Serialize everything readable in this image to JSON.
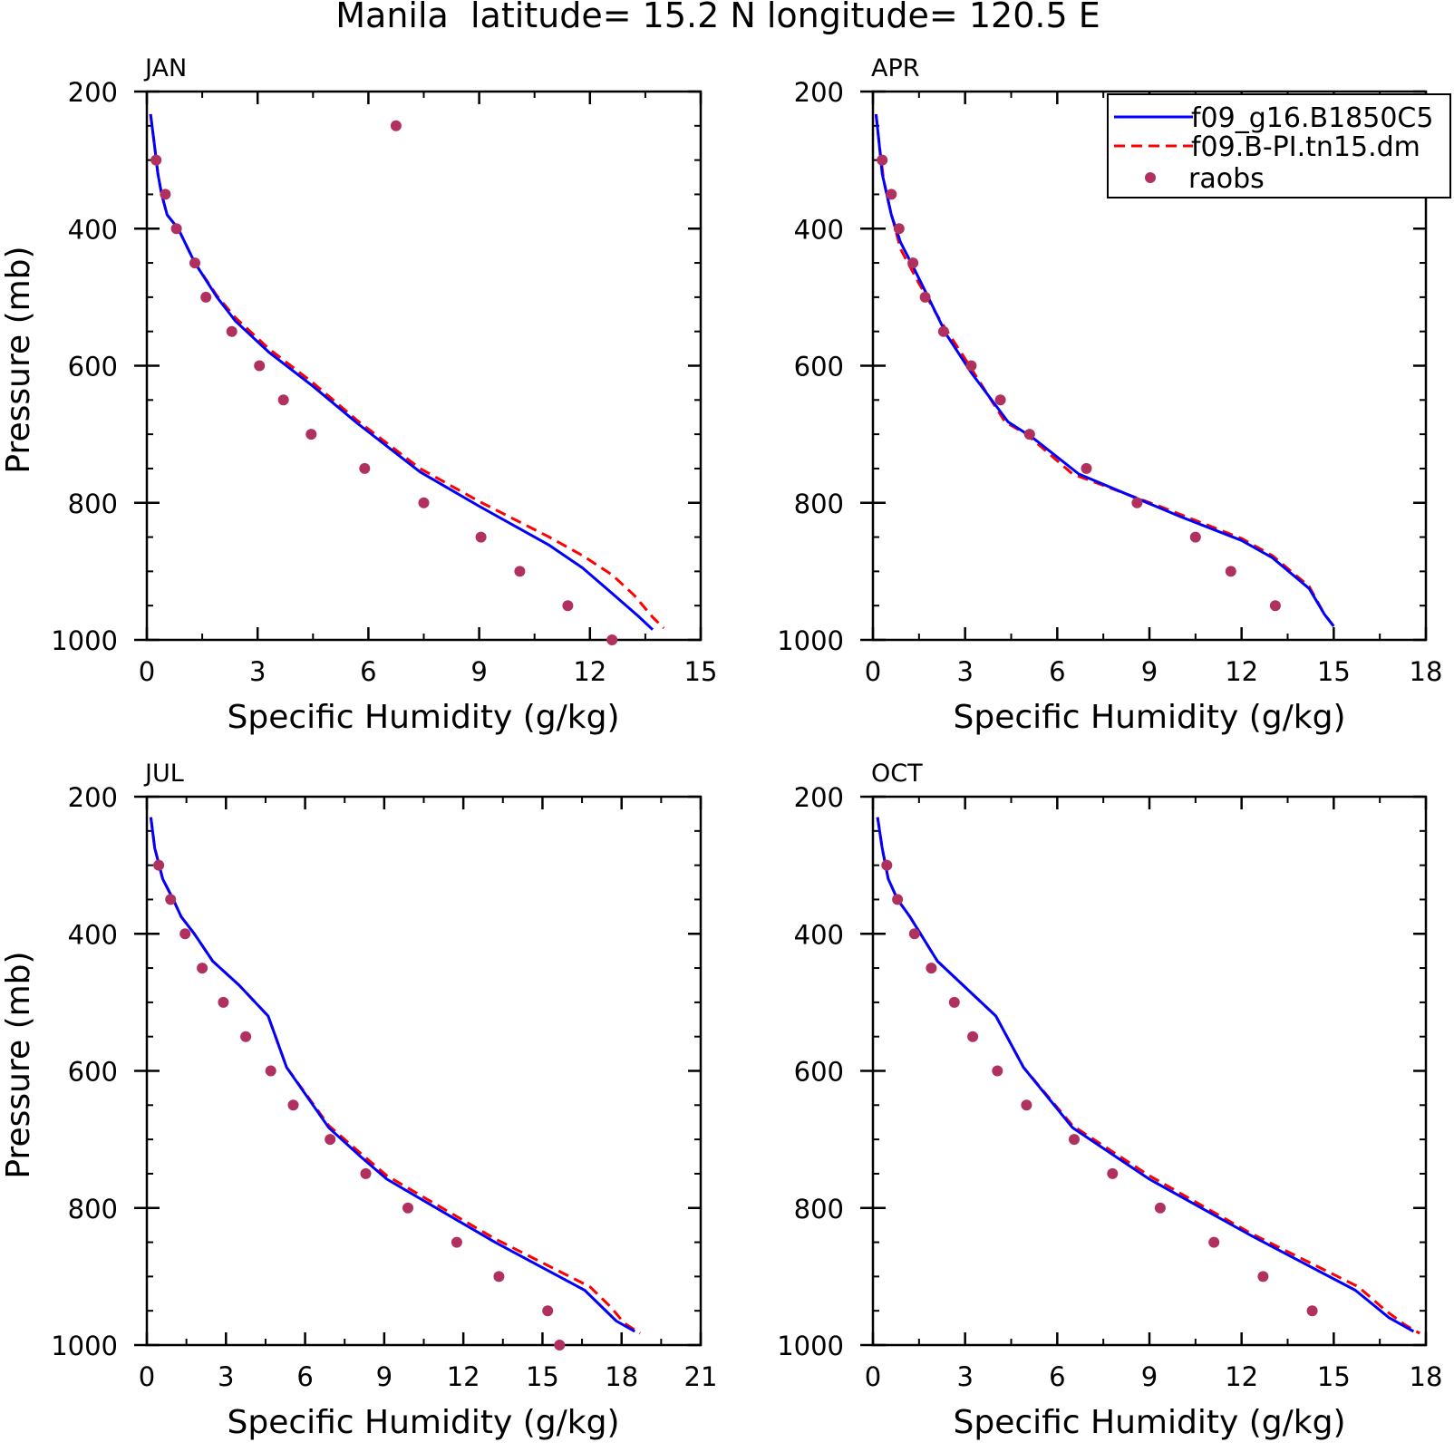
{
  "figure": {
    "title": "Manila  latitude= 15.2 N longitude= 120.5 E"
  },
  "legend": {
    "entries": [
      {
        "label": "f09_g16.B1850C5",
        "style": "solid",
        "color": "#0000ff"
      },
      {
        "label": "f09.B-PI.tn15.dm",
        "style": "dashed",
        "color": "#ff0000"
      },
      {
        "label": "raobs",
        "style": "marker",
        "color": "#b03060"
      }
    ]
  },
  "colors": {
    "model1": "#0000ff",
    "model2": "#ff0000",
    "obs": "#b03060"
  },
  "chart_data": [
    {
      "type": "line",
      "panel_label": "JAN",
      "xlabel": "Specific Humidity (g/kg)",
      "ylabel": "Pressure (mb)",
      "xlim": [
        0,
        15
      ],
      "ylim": [
        200,
        1000
      ],
      "y_inverted": true,
      "xticks": [
        0,
        3,
        6,
        9,
        12,
        15
      ],
      "yticks": [
        200,
        400,
        600,
        800,
        1000
      ],
      "legend": false,
      "series": [
        {
          "style": "solid",
          "points": [
            [
              0.1,
              233
            ],
            [
              0.2,
              275
            ],
            [
              0.3,
              320
            ],
            [
              0.4,
              350
            ],
            [
              0.55,
              380
            ],
            [
              0.85,
              400
            ],
            [
              1.3,
              450
            ],
            [
              1.9,
              500
            ],
            [
              2.4,
              535
            ],
            [
              3.3,
              580
            ],
            [
              4.5,
              630
            ],
            [
              5.7,
              684
            ],
            [
              7.4,
              755
            ],
            [
              9.0,
              805
            ],
            [
              10.9,
              862
            ],
            [
              11.8,
              895
            ],
            [
              12.6,
              932
            ],
            [
              13.3,
              965
            ],
            [
              13.7,
              985
            ]
          ]
        },
        {
          "style": "dashed",
          "points": [
            [
              0.1,
              233
            ],
            [
              0.2,
              275
            ],
            [
              0.3,
              320
            ],
            [
              0.4,
              350
            ],
            [
              0.55,
              380
            ],
            [
              0.85,
              400
            ],
            [
              1.3,
              450
            ],
            [
              1.9,
              498
            ],
            [
              2.4,
              530
            ],
            [
              3.3,
              575
            ],
            [
              4.5,
              625
            ],
            [
              5.7,
              680
            ],
            [
              7.4,
              750
            ],
            [
              9.0,
              798
            ],
            [
              10.9,
              850
            ],
            [
              11.8,
              877
            ],
            [
              12.6,
              905
            ],
            [
              13.2,
              935
            ],
            [
              13.7,
              967
            ],
            [
              14.0,
              983
            ]
          ]
        }
      ],
      "observations": [
        [
          0.25,
          300
        ],
        [
          0.5,
          350
        ],
        [
          0.8,
          400
        ],
        [
          1.3,
          450
        ],
        [
          1.6,
          500
        ],
        [
          2.3,
          550
        ],
        [
          3.05,
          600
        ],
        [
          3.7,
          650
        ],
        [
          4.45,
          700
        ],
        [
          5.9,
          750
        ],
        [
          7.5,
          800
        ],
        [
          9.05,
          850
        ],
        [
          10.1,
          900
        ],
        [
          11.4,
          950
        ],
        [
          12.6,
          1000
        ],
        [
          6.75,
          250
        ]
      ]
    },
    {
      "type": "line",
      "panel_label": "APR",
      "xlabel": "Specific Humidity (g/kg)",
      "ylabel": "",
      "xlim": [
        0,
        18
      ],
      "ylim": [
        200,
        1000
      ],
      "y_inverted": true,
      "xticks": [
        0,
        3,
        6,
        9,
        12,
        15,
        18
      ],
      "yticks": [
        200,
        400,
        600,
        800,
        1000
      ],
      "legend": true,
      "series": [
        {
          "style": "solid",
          "points": [
            [
              0.1,
              233
            ],
            [
              0.2,
              275
            ],
            [
              0.3,
              320
            ],
            [
              0.45,
              350
            ],
            [
              0.6,
              380
            ],
            [
              0.9,
              420
            ],
            [
              1.3,
              455
            ],
            [
              1.8,
              500
            ],
            [
              2.4,
              555
            ],
            [
              3.2,
              610
            ],
            [
              4.4,
              682
            ],
            [
              5.2,
              705
            ],
            [
              6.7,
              758
            ],
            [
              10.0,
              820
            ],
            [
              12.0,
              855
            ],
            [
              13.0,
              880
            ],
            [
              14.2,
              925
            ],
            [
              14.7,
              963
            ],
            [
              15.0,
              980
            ]
          ]
        },
        {
          "style": "dashed",
          "points": [
            [
              0.1,
              233
            ],
            [
              0.2,
              275
            ],
            [
              0.35,
              330
            ],
            [
              0.55,
              370
            ],
            [
              0.9,
              430
            ],
            [
              1.5,
              480
            ],
            [
              2.2,
              535
            ],
            [
              3.0,
              590
            ],
            [
              4.3,
              682
            ],
            [
              5.0,
              700
            ],
            [
              6.5,
              758
            ],
            [
              9.5,
              808
            ],
            [
              12.0,
              852
            ],
            [
              13.0,
              877
            ],
            [
              14.2,
              922
            ],
            [
              14.7,
              963
            ],
            [
              15.0,
              980
            ]
          ]
        }
      ],
      "observations": [
        [
          0.3,
          300
        ],
        [
          0.6,
          350
        ],
        [
          0.85,
          400
        ],
        [
          1.3,
          450
        ],
        [
          1.7,
          500
        ],
        [
          2.3,
          550
        ],
        [
          3.2,
          600
        ],
        [
          4.15,
          650
        ],
        [
          5.1,
          700
        ],
        [
          6.95,
          750
        ],
        [
          8.6,
          800
        ],
        [
          10.5,
          850
        ],
        [
          11.65,
          900
        ],
        [
          13.1,
          950
        ]
      ]
    },
    {
      "type": "line",
      "panel_label": "JUL",
      "xlabel": "Specific Humidity (g/kg)",
      "ylabel": "Pressure (mb)",
      "xlim": [
        0,
        21
      ],
      "ylim": [
        200,
        1000
      ],
      "y_inverted": true,
      "xticks": [
        0,
        3,
        6,
        9,
        12,
        15,
        18,
        21
      ],
      "yticks": [
        200,
        400,
        600,
        800,
        1000
      ],
      "legend": false,
      "series": [
        {
          "style": "solid",
          "points": [
            [
              0.15,
              230
            ],
            [
              0.3,
              275
            ],
            [
              0.6,
              320
            ],
            [
              1.0,
              350
            ],
            [
              1.3,
              375
            ],
            [
              1.8,
              400
            ],
            [
              2.5,
              440
            ],
            [
              3.5,
              475
            ],
            [
              4.6,
              520
            ],
            [
              5.3,
              595
            ],
            [
              6.9,
              683
            ],
            [
              8.1,
              725
            ],
            [
              9.1,
              758
            ],
            [
              13.2,
              850
            ],
            [
              16.6,
              920
            ],
            [
              17.8,
              965
            ],
            [
              18.5,
              980
            ]
          ]
        },
        {
          "style": "dashed",
          "points": [
            [
              0.15,
              230
            ],
            [
              0.3,
              275
            ],
            [
              0.6,
              320
            ],
            [
              1.0,
              350
            ],
            [
              1.3,
              375
            ],
            [
              1.8,
              400
            ],
            [
              2.5,
              440
            ],
            [
              3.5,
              475
            ],
            [
              4.6,
              520
            ],
            [
              5.3,
              595
            ],
            [
              6.9,
              680
            ],
            [
              8.1,
              720
            ],
            [
              9.1,
              753
            ],
            [
              13.2,
              845
            ],
            [
              16.8,
              915
            ],
            [
              17.6,
              945
            ],
            [
              18.1,
              968
            ],
            [
              18.7,
              983
            ]
          ]
        }
      ],
      "observations": [
        [
          0.45,
          300
        ],
        [
          0.9,
          350
        ],
        [
          1.45,
          400
        ],
        [
          2.1,
          450
        ],
        [
          2.9,
          500
        ],
        [
          3.75,
          550
        ],
        [
          4.7,
          600
        ],
        [
          5.55,
          650
        ],
        [
          6.95,
          700
        ],
        [
          8.3,
          750
        ],
        [
          9.9,
          800
        ],
        [
          11.75,
          850
        ],
        [
          13.35,
          900
        ],
        [
          15.2,
          950
        ],
        [
          15.65,
          1000
        ]
      ]
    },
    {
      "type": "line",
      "panel_label": "OCT",
      "xlabel": "Specific Humidity (g/kg)",
      "ylabel": "",
      "xlim": [
        0,
        18
      ],
      "ylim": [
        200,
        1000
      ],
      "y_inverted": true,
      "xticks": [
        0,
        3,
        6,
        9,
        12,
        15,
        18
      ],
      "yticks": [
        200,
        400,
        600,
        800,
        1000
      ],
      "legend": false,
      "series": [
        {
          "style": "solid",
          "points": [
            [
              0.15,
              230
            ],
            [
              0.3,
              275
            ],
            [
              0.5,
              320
            ],
            [
              0.8,
              350
            ],
            [
              1.2,
              375
            ],
            [
              2.1,
              440
            ],
            [
              4.0,
              520
            ],
            [
              4.9,
              595
            ],
            [
              6.5,
              683
            ],
            [
              9.0,
              758
            ],
            [
              12.3,
              840
            ],
            [
              15.7,
              920
            ],
            [
              16.8,
              960
            ],
            [
              17.6,
              980
            ]
          ]
        },
        {
          "style": "dashed",
          "points": [
            [
              0.15,
              230
            ],
            [
              0.3,
              275
            ],
            [
              0.5,
              320
            ],
            [
              0.8,
              350
            ],
            [
              1.2,
              375
            ],
            [
              2.1,
              440
            ],
            [
              4.0,
              520
            ],
            [
              4.9,
              595
            ],
            [
              6.5,
              680
            ],
            [
              9.0,
              753
            ],
            [
              12.3,
              837
            ],
            [
              15.8,
              915
            ],
            [
              16.7,
              950
            ],
            [
              17.3,
              970
            ],
            [
              17.8,
              983
            ]
          ]
        }
      ],
      "observations": [
        [
          0.45,
          300
        ],
        [
          0.8,
          350
        ],
        [
          1.35,
          400
        ],
        [
          1.9,
          450
        ],
        [
          2.65,
          500
        ],
        [
          3.25,
          550
        ],
        [
          4.05,
          600
        ],
        [
          5.0,
          650
        ],
        [
          6.55,
          700
        ],
        [
          7.8,
          750
        ],
        [
          9.35,
          800
        ],
        [
          11.1,
          850
        ],
        [
          12.7,
          900
        ],
        [
          14.3,
          950
        ]
      ]
    }
  ]
}
